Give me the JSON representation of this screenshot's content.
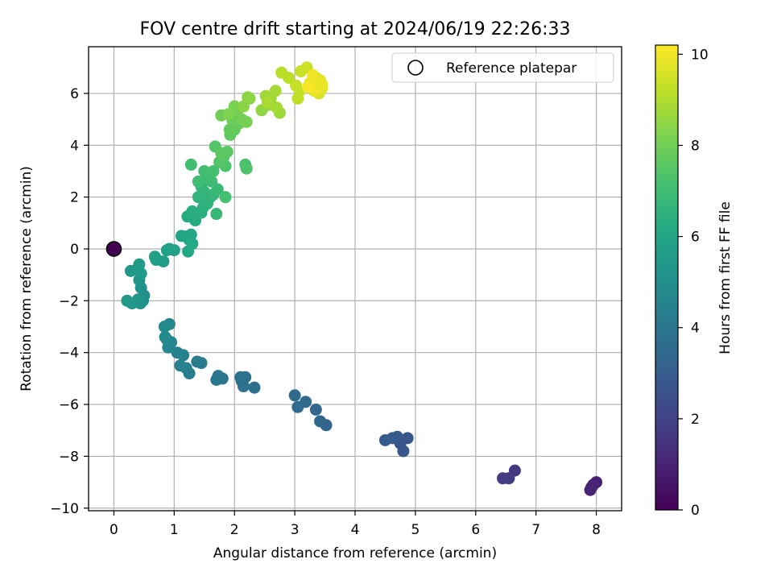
{
  "chart_data": {
    "type": "scatter",
    "title": "FOV centre drift starting at 2024/06/19 22:26:33",
    "xlabel": "Angular distance from reference (arcmin)",
    "ylabel": "Rotation from reference (arcmin)",
    "xlim": [
      -0.42,
      8.42
    ],
    "ylim": [
      -10.1,
      7.8
    ],
    "xticks": [
      0,
      1,
      2,
      3,
      4,
      5,
      6,
      7,
      8
    ],
    "xtick_labels": [
      "0",
      "1",
      "2",
      "3",
      "4",
      "5",
      "6",
      "7",
      "8"
    ],
    "yticks": [
      -10,
      -8,
      -6,
      -4,
      -2,
      0,
      2,
      4,
      6
    ],
    "ytick_labels": [
      "−10",
      "−8",
      "−6",
      "−4",
      "−2",
      "0",
      "2",
      "4",
      "6"
    ],
    "grid": true,
    "legend": {
      "position": "top-right",
      "entries": [
        {
          "label": "Reference platepar",
          "marker": "open-circle"
        }
      ]
    },
    "colorbar": {
      "label": "Hours from first FF file",
      "colormap": "viridis",
      "range": [
        0,
        10.2
      ],
      "ticks": [
        0,
        2,
        4,
        6,
        8,
        10
      ],
      "tick_labels": [
        "0",
        "2",
        "4",
        "6",
        "8",
        "10"
      ]
    },
    "reference_point": {
      "x": 0,
      "y": 0
    },
    "series": [
      {
        "points": [
          [
            8.0,
            -9.0,
            0.9
          ],
          [
            7.92,
            -9.2,
            0.95
          ],
          [
            7.95,
            -9.1,
            1.0
          ],
          [
            7.9,
            -9.3,
            1.05
          ],
          [
            6.65,
            -8.55,
            1.7
          ],
          [
            6.55,
            -8.85,
            1.75
          ],
          [
            6.45,
            -8.85,
            1.8
          ],
          [
            4.87,
            -7.3,
            2.7
          ],
          [
            4.8,
            -7.8,
            2.75
          ],
          [
            4.75,
            -7.5,
            2.8
          ],
          [
            4.7,
            -7.25,
            2.85
          ],
          [
            4.62,
            -7.3,
            2.9
          ],
          [
            4.5,
            -7.38,
            2.95
          ],
          [
            3.52,
            -6.8,
            3.3
          ],
          [
            3.42,
            -6.65,
            3.35
          ],
          [
            3.35,
            -6.2,
            3.4
          ],
          [
            3.18,
            -5.9,
            3.45
          ],
          [
            3.05,
            -6.1,
            3.5
          ],
          [
            3.0,
            -5.65,
            3.55
          ],
          [
            2.33,
            -5.35,
            3.7
          ],
          [
            2.18,
            -4.95,
            3.75
          ],
          [
            2.15,
            -5.3,
            3.8
          ],
          [
            2.12,
            -5.1,
            3.85
          ],
          [
            2.1,
            -4.95,
            3.9
          ],
          [
            1.8,
            -5.0,
            4.0
          ],
          [
            1.73,
            -4.9,
            4.05
          ],
          [
            1.7,
            -5.05,
            4.1
          ],
          [
            1.45,
            -4.4,
            4.2
          ],
          [
            1.38,
            -4.35,
            4.25
          ],
          [
            1.25,
            -4.8,
            4.3
          ],
          [
            1.2,
            -4.6,
            4.35
          ],
          [
            1.15,
            -4.1,
            4.4
          ],
          [
            1.1,
            -4.5,
            4.45
          ],
          [
            1.05,
            -4.0,
            4.5
          ],
          [
            0.95,
            -3.6,
            4.6
          ],
          [
            0.92,
            -2.9,
            4.65
          ],
          [
            0.9,
            -3.8,
            4.7
          ],
          [
            0.88,
            -3.5,
            4.75
          ],
          [
            0.85,
            -3.4,
            4.8
          ],
          [
            0.84,
            -3.0,
            4.85
          ],
          [
            0.5,
            -1.8,
            5.0
          ],
          [
            0.48,
            -2.0,
            5.05
          ],
          [
            0.45,
            -1.5,
            5.1
          ],
          [
            0.44,
            -2.1,
            5.15
          ],
          [
            0.42,
            -1.2,
            5.2
          ],
          [
            0.4,
            -1.95,
            5.25
          ],
          [
            0.4,
            -0.75,
            5.3
          ],
          [
            0.3,
            -2.1,
            5.35
          ],
          [
            0.28,
            -0.85,
            5.4
          ],
          [
            0.22,
            -2.0,
            5.45
          ],
          [
            0.45,
            -0.95,
            5.5
          ],
          [
            0.42,
            -0.6,
            5.55
          ],
          [
            0.82,
            -0.48,
            5.6
          ],
          [
            0.7,
            -0.42,
            5.65
          ],
          [
            0.68,
            -0.3,
            5.7
          ],
          [
            0.88,
            -0.05,
            5.75
          ],
          [
            1.0,
            -0.05,
            5.8
          ],
          [
            0.92,
            0.0,
            5.85
          ],
          [
            1.12,
            0.5,
            5.9
          ],
          [
            1.2,
            0.48,
            5.95
          ],
          [
            1.25,
            0.35,
            6.0
          ],
          [
            1.23,
            -0.1,
            6.05
          ],
          [
            1.28,
            0.55,
            6.1
          ],
          [
            1.3,
            0.2,
            6.15
          ],
          [
            1.22,
            1.25,
            6.2
          ],
          [
            1.35,
            1.1,
            6.25
          ],
          [
            1.3,
            1.45,
            6.3
          ],
          [
            1.45,
            1.4,
            6.35
          ],
          [
            1.48,
            1.6,
            6.4
          ],
          [
            1.5,
            1.9,
            6.45
          ],
          [
            1.55,
            1.75,
            6.5
          ],
          [
            1.6,
            2.0,
            6.55
          ],
          [
            1.4,
            2.0,
            6.6
          ],
          [
            1.5,
            2.2,
            6.65
          ],
          [
            1.45,
            2.4,
            6.7
          ],
          [
            1.65,
            2.1,
            6.75
          ],
          [
            1.7,
            1.35,
            6.8
          ],
          [
            1.72,
            2.3,
            6.85
          ],
          [
            1.55,
            2.8,
            6.9
          ],
          [
            1.4,
            2.6,
            6.95
          ],
          [
            1.62,
            2.6,
            7.0
          ],
          [
            1.5,
            3.0,
            7.05
          ],
          [
            1.28,
            3.25,
            7.1
          ],
          [
            1.85,
            2.0,
            7.15
          ],
          [
            1.65,
            3.0,
            7.2
          ],
          [
            2.18,
            3.25,
            7.25
          ],
          [
            2.2,
            3.1,
            7.3
          ],
          [
            1.85,
            3.2,
            7.35
          ],
          [
            1.75,
            3.35,
            7.4
          ],
          [
            1.68,
            3.95,
            7.45
          ],
          [
            1.82,
            3.55,
            7.5
          ],
          [
            1.88,
            3.75,
            7.55
          ],
          [
            1.78,
            3.7,
            7.6
          ],
          [
            1.93,
            4.4,
            7.65
          ],
          [
            2.0,
            4.6,
            7.7
          ],
          [
            1.92,
            4.6,
            7.75
          ],
          [
            2.08,
            4.85,
            7.8
          ],
          [
            2.0,
            5.1,
            7.85
          ],
          [
            1.97,
            4.95,
            7.9
          ],
          [
            1.78,
            5.15,
            7.95
          ],
          [
            2.12,
            5.0,
            8.0
          ],
          [
            2.05,
            5.35,
            8.05
          ],
          [
            2.2,
            4.9,
            8.1
          ],
          [
            2.0,
            5.5,
            8.15
          ],
          [
            1.9,
            5.2,
            8.2
          ],
          [
            2.25,
            5.8,
            8.35
          ],
          [
            2.15,
            5.5,
            8.4
          ],
          [
            2.22,
            5.85,
            8.45
          ],
          [
            2.45,
            5.35,
            8.5
          ],
          [
            2.55,
            5.55,
            8.55
          ],
          [
            2.75,
            5.25,
            8.65
          ],
          [
            2.6,
            5.8,
            8.7
          ],
          [
            2.52,
            5.9,
            8.75
          ],
          [
            2.7,
            5.45,
            8.8
          ],
          [
            2.68,
            6.1,
            8.85
          ],
          [
            2.55,
            5.65,
            8.9
          ],
          [
            2.78,
            6.8,
            9.1
          ],
          [
            2.9,
            6.6,
            9.15
          ],
          [
            3.05,
            5.8,
            9.2
          ],
          [
            3.08,
            6.1,
            9.25
          ],
          [
            3.02,
            6.3,
            9.3
          ],
          [
            3.1,
            6.85,
            9.35
          ],
          [
            3.2,
            7.0,
            9.4
          ],
          [
            3.28,
            6.2,
            9.45
          ],
          [
            3.3,
            6.3,
            9.5
          ],
          [
            3.35,
            6.6,
            9.55
          ],
          [
            3.4,
            6.0,
            9.6
          ],
          [
            3.38,
            6.45,
            9.65
          ],
          [
            3.45,
            6.2,
            9.7
          ],
          [
            3.42,
            6.5,
            9.75
          ],
          [
            3.32,
            6.1,
            9.8
          ],
          [
            3.25,
            6.4,
            9.85
          ],
          [
            3.45,
            6.35,
            9.9
          ],
          [
            3.35,
            6.15,
            9.95
          ],
          [
            3.3,
            6.7,
            10.0
          ],
          [
            3.22,
            6.25,
            10.1
          ]
        ]
      }
    ]
  }
}
